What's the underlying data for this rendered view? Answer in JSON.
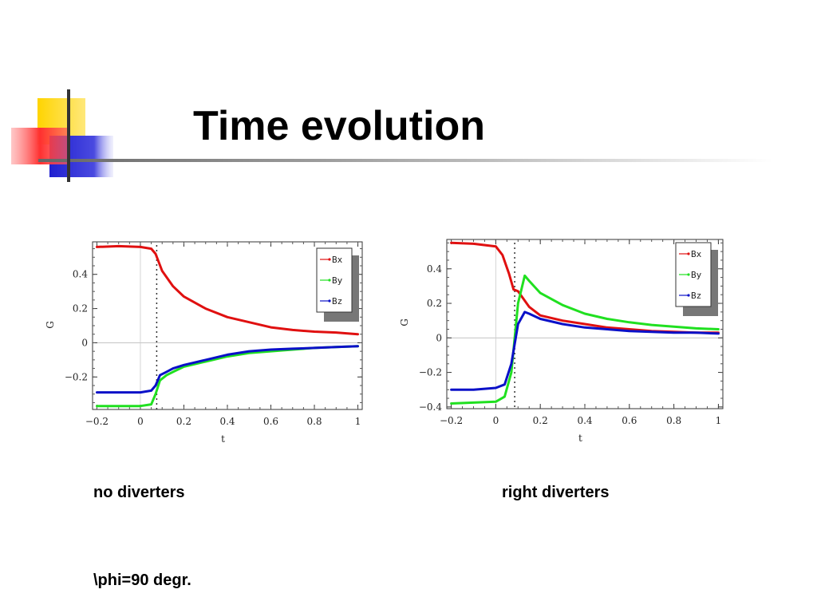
{
  "slide": {
    "title": "Time evolution",
    "captions": [
      "no diverters",
      "right diverters"
    ],
    "note": "\\phi=90 degr."
  },
  "colors": {
    "Bx": "#e01010",
    "By": "#20e020",
    "Bz": "#0a10c8"
  },
  "chart_data": [
    {
      "type": "line",
      "title": "",
      "xlabel": "t",
      "ylabel": "G",
      "xlim": [
        -0.22,
        1.02
      ],
      "ylim": [
        -0.39,
        0.59
      ],
      "xticks": [
        -0.2,
        0,
        0.2,
        0.4,
        0.6,
        0.8,
        1
      ],
      "xtick_labels": [
        "−0.2",
        "0",
        "0.2",
        "0.4",
        "0.6",
        "0.8",
        "1"
      ],
      "yticks": [
        -0.2,
        0,
        0.2,
        0.4
      ],
      "ytick_labels": [
        "−0.2",
        "0",
        "0.2",
        "0.4"
      ],
      "marker_line_t": 0.075,
      "legend_position": "top-right",
      "series": [
        {
          "name": "Bx",
          "x": [
            -0.2,
            -0.1,
            0.0,
            0.05,
            0.07,
            0.1,
            0.15,
            0.2,
            0.3,
            0.4,
            0.5,
            0.6,
            0.7,
            0.8,
            0.9,
            1.0
          ],
          "values": [
            0.56,
            0.565,
            0.56,
            0.55,
            0.52,
            0.42,
            0.33,
            0.27,
            0.2,
            0.15,
            0.12,
            0.09,
            0.075,
            0.065,
            0.06,
            0.05
          ]
        },
        {
          "name": "By",
          "x": [
            -0.2,
            -0.1,
            0.0,
            0.05,
            0.07,
            0.09,
            0.12,
            0.15,
            0.2,
            0.3,
            0.4,
            0.5,
            0.6,
            0.7,
            0.8,
            0.9,
            1.0
          ],
          "values": [
            -0.37,
            -0.37,
            -0.37,
            -0.36,
            -0.3,
            -0.22,
            -0.19,
            -0.17,
            -0.14,
            -0.11,
            -0.08,
            -0.06,
            -0.05,
            -0.04,
            -0.03,
            -0.025,
            -0.02
          ]
        },
        {
          "name": "Bz",
          "x": [
            -0.2,
            -0.1,
            0.0,
            0.05,
            0.07,
            0.09,
            0.12,
            0.15,
            0.2,
            0.3,
            0.4,
            0.5,
            0.6,
            0.7,
            0.8,
            0.9,
            1.0
          ],
          "values": [
            -0.29,
            -0.29,
            -0.29,
            -0.28,
            -0.25,
            -0.19,
            -0.17,
            -0.15,
            -0.13,
            -0.1,
            -0.07,
            -0.05,
            -0.04,
            -0.035,
            -0.03,
            -0.025,
            -0.02
          ]
        }
      ]
    },
    {
      "type": "line",
      "title": "",
      "xlabel": "t",
      "ylabel": "G",
      "xlim": [
        -0.22,
        1.02
      ],
      "ylim": [
        -0.41,
        0.57
      ],
      "xticks": [
        -0.2,
        0,
        0.2,
        0.4,
        0.6,
        0.8,
        1
      ],
      "xtick_labels": [
        "−0.2",
        "0",
        "0.2",
        "0.4",
        "0.6",
        "0.8",
        "1"
      ],
      "yticks": [
        -0.4,
        -0.2,
        0,
        0.2,
        0.4
      ],
      "ytick_labels": [
        "−0.4",
        "−0.2",
        "0",
        "0.2",
        "0.4"
      ],
      "marker_line_t": 0.085,
      "legend_position": "top-right",
      "series": [
        {
          "name": "Bx",
          "x": [
            -0.2,
            -0.1,
            0.0,
            0.03,
            0.06,
            0.08,
            0.1,
            0.15,
            0.2,
            0.3,
            0.4,
            0.5,
            0.6,
            0.7,
            0.8,
            0.9,
            1.0
          ],
          "values": [
            0.55,
            0.545,
            0.53,
            0.48,
            0.37,
            0.28,
            0.27,
            0.18,
            0.13,
            0.1,
            0.08,
            0.06,
            0.05,
            0.04,
            0.035,
            0.03,
            0.03
          ]
        },
        {
          "name": "By",
          "x": [
            -0.2,
            -0.1,
            0.0,
            0.04,
            0.07,
            0.1,
            0.13,
            0.15,
            0.2,
            0.3,
            0.4,
            0.5,
            0.6,
            0.7,
            0.8,
            0.9,
            1.0
          ],
          "values": [
            -0.38,
            -0.375,
            -0.37,
            -0.34,
            -0.2,
            0.2,
            0.36,
            0.33,
            0.26,
            0.19,
            0.14,
            0.11,
            0.09,
            0.075,
            0.065,
            0.055,
            0.05
          ]
        },
        {
          "name": "Bz",
          "x": [
            -0.2,
            -0.1,
            0.0,
            0.04,
            0.07,
            0.1,
            0.13,
            0.15,
            0.2,
            0.3,
            0.4,
            0.5,
            0.6,
            0.7,
            0.8,
            0.9,
            1.0
          ],
          "values": [
            -0.3,
            -0.3,
            -0.29,
            -0.27,
            -0.15,
            0.08,
            0.15,
            0.14,
            0.11,
            0.08,
            0.06,
            0.05,
            0.04,
            0.035,
            0.03,
            0.03,
            0.025
          ]
        }
      ]
    }
  ]
}
